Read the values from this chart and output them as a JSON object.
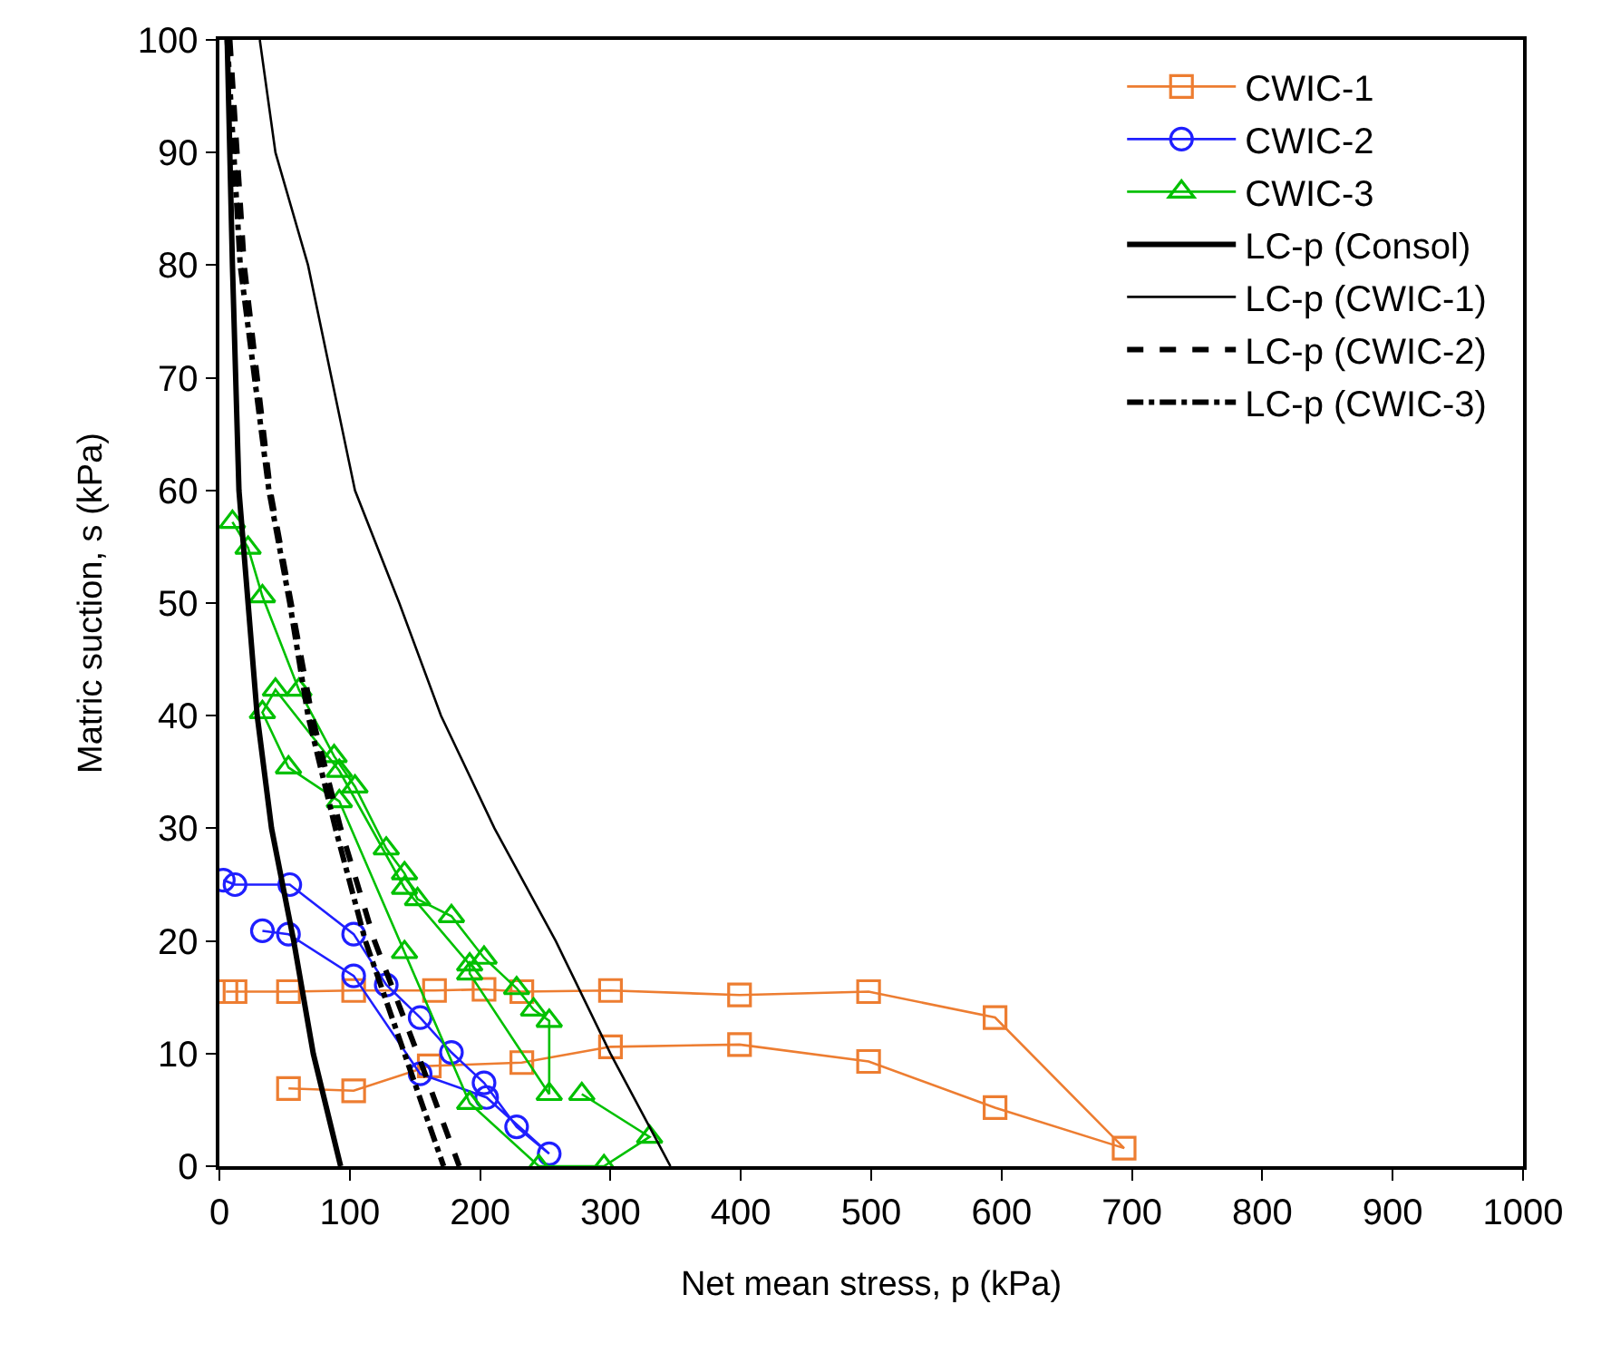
{
  "chart_data": {
    "type": "line",
    "xlabel": "Net mean stress, p (kPa)",
    "ylabel": "Matric suction, s (kPa)",
    "xlim": [
      0,
      1000
    ],
    "xticks": [
      0,
      100,
      200,
      300,
      400,
      500,
      600,
      700,
      800,
      900,
      1000
    ],
    "ylim": [
      0,
      100
    ],
    "yticks": [
      0,
      10,
      20,
      30,
      40,
      50,
      60,
      70,
      80,
      90,
      100
    ],
    "grid": false,
    "legend": "top right",
    "series": [
      {
        "name": "CWIC-1",
        "color": "#ed7d31",
        "marker": "square",
        "line_style": "solid",
        "x": [
          5,
          12,
          53,
          103,
          165,
          203,
          232,
          300,
          399,
          498,
          595,
          694,
          595,
          498,
          399,
          300,
          232,
          161,
          103,
          53
        ],
        "values": [
          15.5,
          15.5,
          15.5,
          15.6,
          15.6,
          15.7,
          15.5,
          15.6,
          15.2,
          15.5,
          13.2,
          1.6,
          5.2,
          9.3,
          10.8,
          10.6,
          9.2,
          8.9,
          6.7,
          6.9
        ]
      },
      {
        "name": "CWIC-2",
        "color": "#1f1fff",
        "marker": "circle",
        "line_style": "solid",
        "x": [
          3,
          12,
          54,
          103,
          128,
          154,
          178,
          203,
          228,
          253,
          205,
          154,
          103,
          53,
          33
        ],
        "values": [
          25.4,
          25.0,
          25.0,
          20.6,
          16.1,
          13.2,
          10.1,
          7.4,
          3.5,
          1.1,
          6.1,
          8.2,
          16.9,
          20.6,
          20.9
        ]
      },
      {
        "name": "CWIC-3",
        "color": "#00c000",
        "marker": "triangle",
        "line_style": "solid",
        "x": [
          10,
          22,
          33,
          61,
          88,
          104,
          128,
          142,
          152,
          178,
          203,
          228,
          241,
          253,
          253,
          192,
          192,
          142,
          92,
          43,
          33,
          53,
          92,
          142,
          192,
          245,
          295,
          330,
          278
        ],
        "values": [
          57.2,
          54.9,
          50.6,
          42.3,
          36.4,
          33.7,
          28.2,
          26.0,
          23.7,
          22.2,
          18.5,
          15.8,
          13.9,
          12.9,
          6.4,
          17.1,
          17.9,
          24.7,
          35.1,
          42.3,
          40.3,
          35.4,
          32.4,
          19.0,
          5.6,
          0,
          0,
          2.6,
          6.4
        ]
      },
      {
        "name": "LC-p (Consol)",
        "color": "#000000",
        "marker": "none",
        "line_style": "solid",
        "x": [
          6,
          10,
          15,
          29,
          40,
          57,
          72,
          93
        ],
        "values": [
          100,
          80,
          60,
          40,
          30,
          20,
          10,
          0
        ]
      },
      {
        "name": "LC-p (CWIC-1)",
        "color": "#000000",
        "marker": "none",
        "line_style": "solid",
        "x": [
          31,
          43,
          68,
          104,
          138,
          170,
          211,
          258,
          300,
          346
        ],
        "values": [
          100,
          90,
          80,
          60,
          50,
          40,
          30,
          20,
          10,
          0
        ]
      },
      {
        "name": "LC-p (CWIC-2)",
        "color": "#000000",
        "marker": "none",
        "line_style": "dashed",
        "x": [
          8,
          19,
          39,
          55,
          71,
          93,
          119,
          152,
          184
        ],
        "values": [
          100,
          80,
          60,
          50,
          40,
          30,
          20,
          10,
          0
        ]
      },
      {
        "name": "LC-p (CWIC-3)",
        "color": "#000000",
        "marker": "none",
        "line_style": "dashdot",
        "x": [
          6,
          16,
          38,
          54,
          68,
          89,
          112,
          142,
          172
        ],
        "values": [
          100,
          80,
          60,
          50,
          40,
          30,
          20,
          10,
          0
        ]
      }
    ]
  }
}
